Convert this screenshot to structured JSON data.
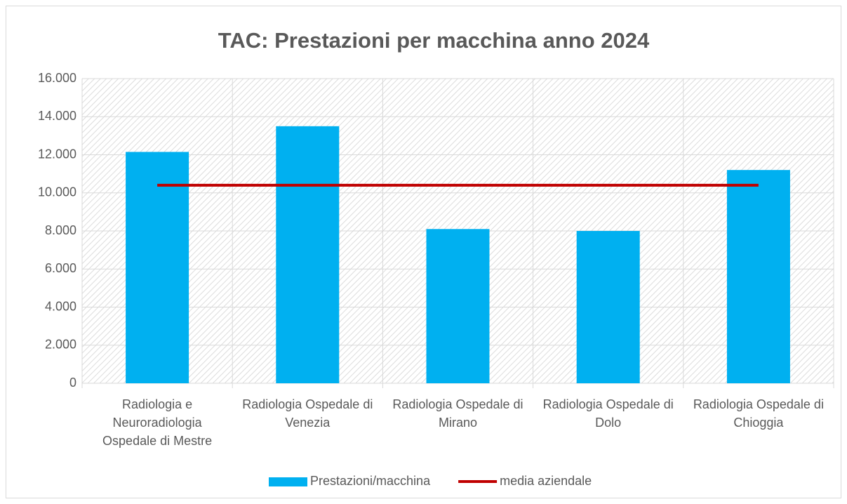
{
  "chart_data": {
    "type": "bar",
    "title": "TAC: Prestazioni per macchina anno 2024",
    "categories": [
      "Radiologia e Neuroradiologia Ospedale di Mestre",
      "Radiologia Ospedale di Venezia",
      "Radiologia Ospedale di Mirano",
      "Radiologia Ospedale di Dolo",
      "Radiologia Ospedale di Chioggia"
    ],
    "series": [
      {
        "name": "Prestazioni/macchina",
        "type": "bar",
        "color": "#00b0f0",
        "values": [
          12150,
          13500,
          8100,
          8000,
          11200
        ]
      },
      {
        "name": "media aziendale",
        "type": "line",
        "color": "#c00000",
        "values": [
          10400,
          10400,
          10400,
          10400,
          10400
        ]
      }
    ],
    "ylim": [
      0,
      16000
    ],
    "yticks": [
      0,
      {
        "value": 2000,
        "label": "2.000"
      },
      {
        "value": 4000,
        "label": "4.000"
      },
      {
        "value": 6000,
        "label": "6.000"
      },
      {
        "value": 8000,
        "label": "8.000"
      },
      {
        "value": 10000,
        "label": "10.000"
      },
      {
        "value": 12000,
        "label": "12.000"
      },
      {
        "value": 14000,
        "label": "14.000"
      },
      {
        "value": 16000,
        "label": "16.000"
      }
    ],
    "grid": true,
    "legend": "bottom"
  }
}
